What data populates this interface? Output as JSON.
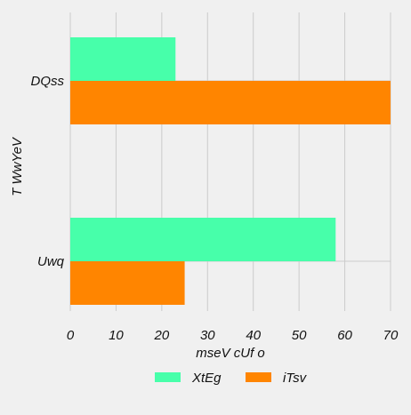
{
  "chart_data": {
    "type": "bar",
    "orientation": "horizontal",
    "categories": [
      "DQss",
      "Uwq"
    ],
    "series": [
      {
        "name": "XtEg",
        "color": "#47ffaa",
        "values": [
          23,
          58
        ]
      },
      {
        "name": "iTsv",
        "color": "#ff8500",
        "values": [
          70,
          25
        ]
      }
    ],
    "xlabel": "mseV cUf o",
    "ylabel": "T WwYeV",
    "xlim": [
      0,
      70
    ],
    "xticks": [
      0,
      10,
      20,
      30,
      40,
      50,
      60,
      70
    ],
    "grid": true,
    "legend_position": "bottom-center"
  },
  "colors": {
    "background": "#f0f0f0",
    "grid": "#cbcbcb",
    "text": "#111111"
  }
}
